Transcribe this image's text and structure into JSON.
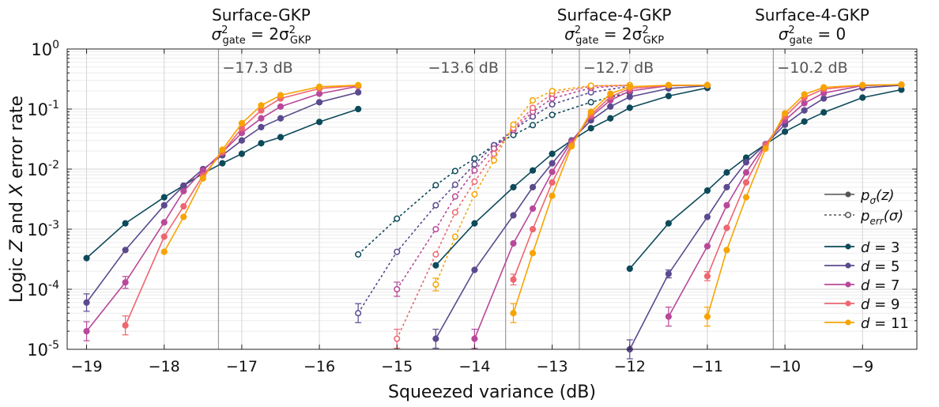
{
  "chart_data": {
    "type": "line",
    "xlabel": "Squeezed variance (dB)",
    "ylabel_parts": [
      "Logic ",
      "Z",
      " and ",
      "X",
      " error rate"
    ],
    "x_range": [
      -19.25,
      -8.3
    ],
    "y_range_log10": [
      -5,
      0
    ],
    "xticks": [
      -19,
      -18,
      -17,
      -16,
      -15,
      -14,
      -13,
      -12,
      -11,
      -10,
      -9
    ],
    "xtick_labels": [
      "−19",
      "−18",
      "−17",
      "−16",
      "−15",
      "−14",
      "−13",
      "−12",
      "−11",
      "−10",
      "−9"
    ],
    "ytick_labels": [
      {
        "base": "10",
        "exp": "-5"
      },
      {
        "base": "10",
        "exp": "-4"
      },
      {
        "base": "10",
        "exp": "-3"
      },
      {
        "base": "10",
        "exp": "-2"
      },
      {
        "base": "10",
        "exp": "-1"
      },
      {
        "base": "10",
        "exp": "0"
      }
    ],
    "grid": true,
    "colors": {
      "d3": "#0d4a5a",
      "d5": "#5b4a8e",
      "d7": "#b8489a",
      "d9": "#ee6670",
      "d11": "#f7a400"
    },
    "panel_titles": [
      {
        "name": "Surface-GKP",
        "eq_lhs": "σ",
        "eq_sub": "gate",
        "eq_sup": "2",
        "eq_rhs": "= 2σ",
        "eq_rhs_sub": "GKP",
        "eq_rhs_sup": "2",
        "center_x": -16.75
      },
      {
        "name": "Surface-4-GKP",
        "eq_lhs": "σ",
        "eq_sub": "gate",
        "eq_sup": "2",
        "eq_rhs": "= 2σ",
        "eq_rhs_sub": "GKP",
        "eq_rhs_sup": "2",
        "center_x": -12.2
      },
      {
        "name": "Surface-4-GKP",
        "eq_lhs": "σ",
        "eq_sub": "gate",
        "eq_sup": "2",
        "eq_rhs": "= 0",
        "eq_rhs_sub": "",
        "eq_rhs_sup": "",
        "center_x": -9.65
      }
    ],
    "thresholds": [
      {
        "x": -17.3,
        "label": "−17.3 dB",
        "label_x": -17.25
      },
      {
        "x": -13.6,
        "label": "−13.6 dB",
        "label_x": -14.6
      },
      {
        "x": -12.65,
        "label": "−12.7 dB",
        "label_x": -12.6
      },
      {
        "x": -10.15,
        "label": "−10.2 dB",
        "label_x": -10.1
      }
    ],
    "series": [
      {
        "name": "SGKP d=3",
        "d": 3,
        "style": "solid",
        "x": [
          -19,
          -18.5,
          -18,
          -17.75,
          -17.5,
          -17.25,
          -17,
          -16.75,
          -16.5,
          -16,
          -15.5
        ],
        "y": [
          0.00033,
          0.00125,
          0.0034,
          0.0053,
          0.0085,
          0.0125,
          0.018,
          0.027,
          0.034,
          0.061,
          0.1
        ]
      },
      {
        "name": "SGKP d=5",
        "d": 5,
        "style": "solid",
        "x": [
          -19,
          -18.5,
          -18,
          -17.75,
          -17.5,
          -17.25,
          -17,
          -16.75,
          -16.5,
          -16,
          -15.5
        ],
        "y": [
          6e-05,
          0.00045,
          0.0025,
          0.0053,
          0.01,
          0.017,
          0.03,
          0.05,
          0.07,
          0.13,
          0.19
        ]
      },
      {
        "name": "SGKP d=7",
        "d": 7,
        "style": "solid",
        "x": [
          -19,
          -18.5,
          -18,
          -17.75,
          -17.5,
          -17.25,
          -17,
          -16.75,
          -16.5,
          -16,
          -15.5
        ],
        "y": [
          2e-05,
          0.00013,
          0.0013,
          0.0043,
          0.0095,
          0.019,
          0.04,
          0.07,
          0.11,
          0.18,
          0.24
        ]
      },
      {
        "name": "SGKP d=9",
        "d": 9,
        "style": "solid",
        "x": [
          -18.5,
          -18,
          -17.75,
          -17.5,
          -17.25,
          -17,
          -16.75,
          -16.5,
          -16,
          -15.5
        ],
        "y": [
          2.5e-05,
          0.00075,
          0.0024,
          0.0078,
          0.019,
          0.048,
          0.095,
          0.15,
          0.22,
          0.245
        ]
      },
      {
        "name": "SGKP d=11",
        "d": 11,
        "style": "solid",
        "x": [
          -18,
          -17.75,
          -17.5,
          -17.25,
          -17,
          -16.75,
          -16.5,
          -16,
          -15.5
        ],
        "y": [
          0.00042,
          0.0016,
          0.007,
          0.021,
          0.058,
          0.115,
          0.17,
          0.235,
          0.25
        ]
      },
      {
        "name": "S4GKP perr d=3",
        "d": 3,
        "style": "dotted",
        "x": [
          -15.5,
          -15,
          -14.5,
          -14.25,
          -14,
          -13.75,
          -13.5,
          -13.25,
          -13,
          -12.5,
          -12
        ],
        "y": [
          0.00038,
          0.0015,
          0.0054,
          0.0093,
          0.015,
          0.025,
          0.037,
          0.054,
          0.08,
          0.13,
          0.19
        ]
      },
      {
        "name": "S4GKP perr d=5",
        "d": 5,
        "style": "dotted",
        "x": [
          -15.5,
          -15,
          -14.5,
          -14.25,
          -14,
          -13.75,
          -13.5,
          -13.25,
          -13,
          -12.5,
          -12
        ],
        "y": [
          4e-05,
          0.00042,
          0.0025,
          0.0055,
          0.012,
          0.025,
          0.045,
          0.075,
          0.12,
          0.19,
          0.24
        ]
      },
      {
        "name": "S4GKP perr d=7",
        "d": 7,
        "style": "dotted",
        "x": [
          -15,
          -14.5,
          -14.25,
          -14,
          -13.75,
          -13.5,
          -13.25,
          -13,
          -12.5,
          -12
        ],
        "y": [
          0.0001,
          0.001,
          0.0035,
          0.0095,
          0.022,
          0.045,
          0.09,
          0.15,
          0.225,
          0.25
        ]
      },
      {
        "name": "S4GKP perr d=9",
        "d": 9,
        "style": "dotted",
        "x": [
          -15,
          -14.5,
          -14.25,
          -14,
          -13.75,
          -13.5,
          -13.25,
          -13,
          -12.5,
          -12
        ],
        "y": [
          1.5e-05,
          0.00038,
          0.0019,
          0.0062,
          0.018,
          0.048,
          0.105,
          0.18,
          0.24,
          0.25
        ]
      },
      {
        "name": "S4GKP perr d=11",
        "d": 11,
        "style": "dotted",
        "x": [
          -14.5,
          -14.25,
          -14,
          -13.75,
          -13.5,
          -13.25,
          -13,
          -12.5,
          -12
        ],
        "y": [
          0.00012,
          0.00075,
          0.0038,
          0.014,
          0.055,
          0.14,
          0.2,
          0.245,
          0.25
        ]
      },
      {
        "name": "S4GKP pz d=3",
        "d": 3,
        "style": "solid",
        "x": [
          -14.5,
          -14,
          -13.5,
          -13.25,
          -13,
          -12.75,
          -12.5,
          -12.25,
          -12,
          -11.5,
          -11
        ],
        "y": [
          0.00025,
          0.00125,
          0.005,
          0.0095,
          0.018,
          0.03,
          0.048,
          0.07,
          0.105,
          0.165,
          0.225
        ]
      },
      {
        "name": "S4GKP pz d=5",
        "d": 5,
        "style": "solid",
        "x": [
          -14.5,
          -14,
          -13.5,
          -13.25,
          -13,
          -12.75,
          -12.5,
          -12.25,
          -12,
          -11.5,
          -11
        ],
        "y": [
          1.5e-05,
          0.00021,
          0.0017,
          0.005,
          0.0125,
          0.03,
          0.065,
          0.11,
          0.16,
          0.22,
          0.245
        ]
      },
      {
        "name": "S4GKP pz d=7",
        "d": 7,
        "style": "solid",
        "x": [
          -14,
          -13.5,
          -13.25,
          -13,
          -12.75,
          -12.5,
          -12.25,
          -12,
          -11.5,
          -11
        ],
        "y": [
          1.5e-05,
          0.00058,
          0.0022,
          0.009,
          0.029,
          0.075,
          0.14,
          0.2,
          0.245,
          0.25
        ]
      },
      {
        "name": "S4GKP pz d=9",
        "d": 9,
        "style": "solid",
        "x": [
          -13.5,
          -13.25,
          -13,
          -12.75,
          -12.5,
          -12.25,
          -12,
          -11.5,
          -11
        ],
        "y": [
          0.000145,
          0.001,
          0.006,
          0.026,
          0.08,
          0.16,
          0.22,
          0.25,
          0.25
        ]
      },
      {
        "name": "S4GKP pz d=11",
        "d": 11,
        "style": "solid",
        "x": [
          -13.5,
          -13.25,
          -13,
          -12.75,
          -12.5,
          -12.25,
          -12,
          -11.5,
          -11
        ],
        "y": [
          4e-05,
          0.0004,
          0.0036,
          0.024,
          0.09,
          0.18,
          0.235,
          0.25,
          0.25
        ]
      },
      {
        "name": "S4GKP0 d=3",
        "d": 3,
        "style": "solid",
        "x": [
          -12,
          -11.5,
          -11,
          -10.75,
          -10.5,
          -10.25,
          -10,
          -9.75,
          -9.5,
          -9,
          -8.5
        ],
        "y": [
          0.00022,
          0.00125,
          0.0044,
          0.0088,
          0.0155,
          0.026,
          0.042,
          0.062,
          0.088,
          0.155,
          0.21
        ]
      },
      {
        "name": "S4GKP0 d=5",
        "d": 5,
        "style": "solid",
        "x": [
          -12,
          -11.5,
          -11,
          -10.75,
          -10.5,
          -10.25,
          -10,
          -9.75,
          -9.5,
          -9,
          -8.5
        ],
        "y": [
          1e-05,
          0.00018,
          0.0016,
          0.005,
          0.013,
          0.026,
          0.055,
          0.095,
          0.15,
          0.225,
          0.25
        ]
      },
      {
        "name": "S4GKP0 d=7",
        "d": 7,
        "style": "solid",
        "x": [
          -11.5,
          -11,
          -10.75,
          -10.5,
          -10.25,
          -10,
          -9.75,
          -9.5,
          -9,
          -8.5
        ],
        "y": [
          3.5e-05,
          0.00052,
          0.0025,
          0.0088,
          0.026,
          0.065,
          0.125,
          0.185,
          0.245,
          0.255
        ]
      },
      {
        "name": "S4GKP0 d=9",
        "d": 9,
        "style": "solid",
        "x": [
          -11,
          -10.75,
          -10.5,
          -10.25,
          -10,
          -9.75,
          -9.5,
          -9,
          -8.5
        ],
        "y": [
          0.000165,
          0.00105,
          0.006,
          0.025,
          0.075,
          0.155,
          0.215,
          0.25,
          0.255
        ]
      },
      {
        "name": "S4GKP0 d=11",
        "d": 11,
        "style": "solid",
        "x": [
          -11,
          -10.75,
          -10.5,
          -10.25,
          -10,
          -9.75,
          -9.5,
          -9,
          -8.5
        ],
        "y": [
          3.5e-05,
          0.00045,
          0.0034,
          0.022,
          0.085,
          0.175,
          0.23,
          0.25,
          0.255
        ]
      }
    ],
    "legend": {
      "placement": "right",
      "style_items": [
        {
          "label_main": "p",
          "label_sub": "σ",
          "label_rest": "(z)",
          "style": "solid"
        },
        {
          "label_main": "p",
          "label_sub": "err",
          "label_rest": "(σ)",
          "style": "dotted"
        }
      ],
      "d_items": [
        {
          "label_prefix": "d",
          "label_value": "= 3",
          "color": "#0d4a5a"
        },
        {
          "label_prefix": "d",
          "label_value": "= 5",
          "color": "#5b4a8e"
        },
        {
          "label_prefix": "d",
          "label_value": "= 7",
          "color": "#b8489a"
        },
        {
          "label_prefix": "d",
          "label_value": "= 9",
          "color": "#ee6670"
        },
        {
          "label_prefix": "d",
          "label_value": "= 11",
          "color": "#f7a400"
        }
      ]
    }
  }
}
